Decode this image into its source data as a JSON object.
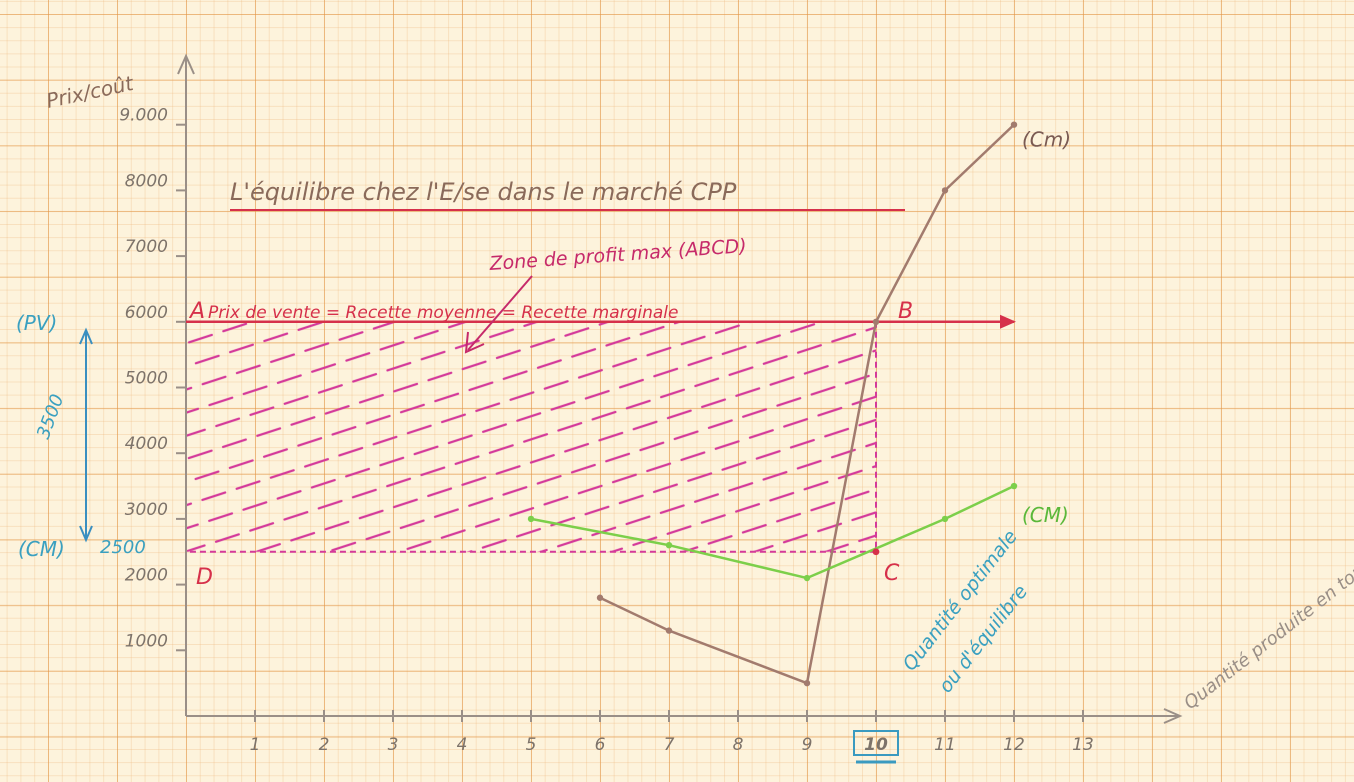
{
  "chart_data": {
    "type": "line",
    "title": "L'équilibre chez l'E/se dans le marché CPP",
    "ylabel": "Prix/coût",
    "xlabel": "Quantité produite en tonnes",
    "xlim": [
      0,
      14
    ],
    "ylim": [
      0,
      9500
    ],
    "x_ticks": [
      "1",
      "2",
      "3",
      "4",
      "5",
      "6",
      "7",
      "8",
      "9",
      "10",
      "11",
      "12",
      "13"
    ],
    "y_ticks": [
      {
        "value": 1000,
        "label": "1000"
      },
      {
        "value": 2000,
        "label": "2000"
      },
      {
        "value": 3000,
        "label": "3000"
      },
      {
        "value": 4000,
        "label": "4000"
      },
      {
        "value": 5000,
        "label": "5000"
      },
      {
        "value": 6000,
        "label": "6000"
      },
      {
        "value": 7000,
        "label": "7000"
      },
      {
        "value": 8000,
        "label": "8000"
      },
      {
        "value": 9000,
        "label": "9.000"
      }
    ],
    "series": [
      {
        "name": "(Cm)",
        "color": "#a27b6e",
        "points": [
          [
            6,
            1800
          ],
          [
            7,
            1300
          ],
          [
            9,
            500
          ],
          [
            10,
            6000
          ],
          [
            11,
            8000
          ],
          [
            12,
            9000
          ]
        ]
      },
      {
        "name": "(CM)",
        "color": "#7ccf4a",
        "points": [
          [
            5,
            3000
          ],
          [
            7,
            2600
          ],
          [
            9,
            2100
          ],
          [
            11,
            3000
          ],
          [
            12,
            3500
          ]
        ]
      }
    ],
    "price_line": {
      "value": 6000,
      "x_range": [
        0,
        12
      ],
      "label": "Prix de vente = Recette moyenne = Recette marginale",
      "color": "#d6304a"
    },
    "profit_zone": {
      "x_range": [
        0,
        10
      ],
      "y_range": [
        2500,
        6000
      ],
      "label": "Zone de profit max (ABCD)",
      "color": "#d43a9a"
    },
    "points_labels": [
      {
        "name": "A",
        "x": 0,
        "y": 6000
      },
      {
        "name": "B",
        "x": 10,
        "y": 6000
      },
      {
        "name": "C",
        "x": 10,
        "y": 2500
      },
      {
        "name": "D",
        "x": 0,
        "y": 2500
      }
    ],
    "annotations": {
      "pv_label": "(PV)",
      "cm_label": "(CM)",
      "cm_value": "2500",
      "gap_label": "3500",
      "optimum_label_line1": "Quantité optimale",
      "optimum_label_line2": "ou d'équilibre",
      "optimum_x": "10"
    }
  }
}
